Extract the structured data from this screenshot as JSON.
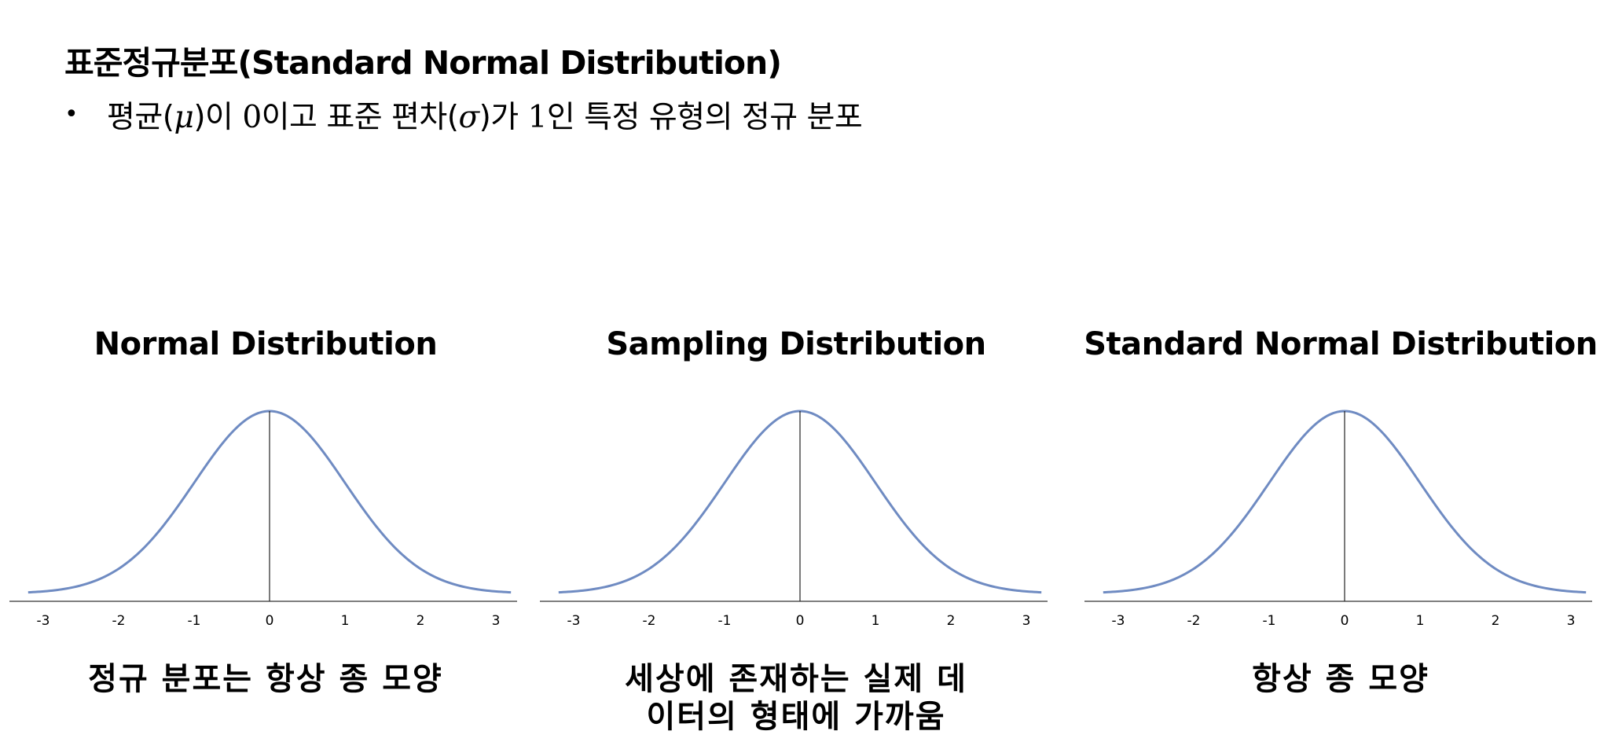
{
  "header": {
    "title": "표준정규분포(Standard Normal Distribution)",
    "bullet": {
      "pre": "평균(",
      "mu": "μ",
      "mid1": ")이 ",
      "zero": "0",
      "mid2": "이고 표준 편차(",
      "sigma": "σ",
      "mid3": ")가 ",
      "one": "1",
      "post": "인 특정 유형의 정규 분포"
    }
  },
  "chart_data": [
    {
      "type": "line",
      "title": "Normal Distribution",
      "caption": "정규 분포는 항상 종 모양",
      "x_ticks": [
        "-3",
        "-2",
        "-1",
        "0",
        "1",
        "2",
        "3"
      ],
      "xlim": [
        -3.2,
        3.2
      ],
      "curve": "normal pdf, mean 0, sd 1",
      "color": "#6f8bc2"
    },
    {
      "type": "line",
      "title": "Sampling Distribution",
      "caption": [
        "세상에 존재하는 실제 데",
        "이터의 형태에 가까움"
      ],
      "x_ticks": [
        "-3",
        "-2",
        "-1",
        "0",
        "1",
        "2",
        "3"
      ],
      "xlim": [
        -3.2,
        3.2
      ],
      "curve": "normal pdf, mean 0, sd 1",
      "color": "#6f8bc2"
    },
    {
      "type": "line",
      "title": "Standard Normal Distribution",
      "caption": "항상 종 모양",
      "x_ticks": [
        "-3",
        "-2",
        "-1",
        "0",
        "1",
        "2",
        "3"
      ],
      "xlim": [
        -3.2,
        3.2
      ],
      "curve": "normal pdf, mean 0, sd 1",
      "color": "#6f8bc2"
    }
  ]
}
